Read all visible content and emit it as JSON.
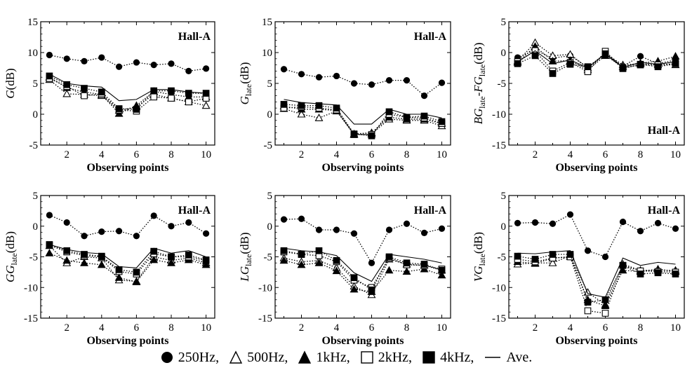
{
  "chart_data": [
    {
      "type": "line",
      "ylabel_main": "G",
      "ylabel_sub": "",
      "ylabel_unit": "(dB)",
      "xlabel": "Observing points",
      "annotation": "Hall-A",
      "annotation_pos": "top",
      "ylim": [
        -5,
        15
      ],
      "yticks": [
        -5,
        0,
        5,
        10,
        15
      ],
      "xlim": [
        0.5,
        10.5
      ],
      "xticks": [
        2,
        4,
        6,
        8,
        10
      ],
      "x": [
        1,
        2,
        3,
        4,
        5,
        6,
        7,
        8,
        9,
        10
      ],
      "series": [
        {
          "name": "250Hz",
          "marker": "circle",
          "values": [
            9.6,
            9.0,
            8.6,
            9.2,
            7.7,
            8.4,
            8.0,
            8.2,
            7.0,
            7.4
          ]
        },
        {
          "name": "500Hz",
          "marker": "triangle-open",
          "values": [
            5.6,
            3.3,
            3.2,
            3.0,
            0.6,
            1.2,
            3.2,
            2.6,
            2.0,
            1.4
          ]
        },
        {
          "name": "1kHz",
          "marker": "triangle",
          "values": [
            6.0,
            4.3,
            3.6,
            3.2,
            0.1,
            1.4,
            3.7,
            3.2,
            2.8,
            2.8
          ]
        },
        {
          "name": "2kHz",
          "marker": "square-open",
          "values": [
            5.8,
            4.5,
            3.0,
            3.3,
            0.7,
            0.5,
            2.8,
            2.6,
            2.0,
            2.6
          ]
        },
        {
          "name": "4kHz",
          "marker": "square",
          "values": [
            6.2,
            4.8,
            4.2,
            3.6,
            0.9,
            0.8,
            3.8,
            3.8,
            3.4,
            3.4
          ]
        },
        {
          "name": "Ave.",
          "marker": "none",
          "values": [
            6.5,
            5.0,
            4.6,
            4.4,
            2.2,
            2.4,
            4.0,
            4.0,
            3.6,
            3.4
          ]
        }
      ]
    },
    {
      "type": "line",
      "ylabel_main": "G",
      "ylabel_sub": "late",
      "ylabel_unit": "(dB)",
      "xlabel": "Observing points",
      "annotation": "Hall-A",
      "annotation_pos": "top",
      "ylim": [
        -5,
        15
      ],
      "yticks": [
        -5,
        0,
        5,
        10,
        15
      ],
      "xlim": [
        0.5,
        10.5
      ],
      "xticks": [
        2,
        4,
        6,
        8,
        10
      ],
      "x": [
        1,
        2,
        3,
        4,
        5,
        6,
        7,
        8,
        9,
        10
      ],
      "series": [
        {
          "name": "250Hz",
          "marker": "circle",
          "values": [
            7.3,
            6.5,
            6.0,
            6.2,
            5.0,
            4.8,
            5.5,
            5.5,
            3.0,
            5.1
          ]
        },
        {
          "name": "500Hz",
          "marker": "triangle-open",
          "values": [
            0.9,
            0.0,
            -0.6,
            0.5,
            -3.3,
            -3.2,
            -0.8,
            -1.0,
            -1.0,
            -1.9
          ]
        },
        {
          "name": "1kHz",
          "marker": "triangle",
          "values": [
            1.3,
            0.8,
            0.8,
            0.6,
            -3.2,
            -3.0,
            -0.5,
            -0.8,
            -0.8,
            -1.5
          ]
        },
        {
          "name": "2kHz",
          "marker": "square-open",
          "values": [
            1.0,
            1.2,
            1.0,
            0.7,
            -3.3,
            -3.3,
            0.0,
            -0.5,
            -0.6,
            -1.5
          ]
        },
        {
          "name": "4kHz",
          "marker": "square",
          "values": [
            1.6,
            1.4,
            1.4,
            1.0,
            -3.2,
            -3.5,
            0.4,
            -0.5,
            -0.3,
            -1.2
          ]
        },
        {
          "name": "Ave.",
          "marker": "none",
          "values": [
            2.4,
            1.9,
            1.7,
            1.5,
            -1.6,
            -1.6,
            0.8,
            0.0,
            0.0,
            -0.6
          ]
        }
      ]
    },
    {
      "type": "line",
      "ylabel_main": "BG",
      "ylabel_sub": "late",
      "ylabel_mid": "-FG",
      "ylabel_sub2": "late",
      "ylabel_unit": "(dB)",
      "xlabel": "Observing points",
      "annotation": "Hall-A",
      "annotation_pos": "bottom",
      "ylim": [
        -15,
        5
      ],
      "yticks": [
        -15,
        -10,
        -5,
        0,
        5
      ],
      "xlim": [
        0.5,
        10.5
      ],
      "xticks": [
        2,
        4,
        6,
        8,
        10
      ],
      "x": [
        1,
        2,
        3,
        4,
        5,
        6,
        7,
        8,
        9,
        10
      ],
      "series": [
        {
          "name": "250Hz",
          "marker": "circle",
          "values": [
            -0.8,
            0.4,
            -0.9,
            -0.5,
            -2.4,
            -0.3,
            -2.2,
            -0.6,
            -1.8,
            -1.2
          ]
        },
        {
          "name": "500Hz",
          "marker": "triangle-open",
          "values": [
            -1.4,
            1.6,
            -0.5,
            -0.3,
            -2.5,
            -0.2,
            -2.0,
            -1.8,
            -2.0,
            -2.0
          ]
        },
        {
          "name": "1kHz",
          "marker": "triangle",
          "values": [
            -1.6,
            1.0,
            -1.4,
            -1.3,
            -2.8,
            -0.5,
            -2.3,
            -1.7,
            -1.4,
            -0.6
          ]
        },
        {
          "name": "2kHz",
          "marker": "square-open",
          "values": [
            -1.5,
            0.3,
            -3.0,
            -1.6,
            -3.1,
            0.2,
            -2.5,
            -2.0,
            -2.0,
            -1.8
          ]
        },
        {
          "name": "4kHz",
          "marker": "square",
          "values": [
            -1.8,
            -0.5,
            -3.4,
            -1.9,
            -2.3,
            -0.2,
            -2.6,
            -1.9,
            -2.3,
            -1.8
          ]
        },
        {
          "name": "Ave.",
          "marker": "none",
          "values": [
            -1.5,
            0.3,
            -1.8,
            -1.2,
            -2.5,
            -0.2,
            -2.4,
            -1.6,
            -1.9,
            -1.5
          ]
        }
      ]
    },
    {
      "type": "line",
      "ylabel_main": "GG",
      "ylabel_sub": "late",
      "ylabel_unit": "(dB)",
      "xlabel": "Observing points",
      "annotation": "Hall-A",
      "annotation_pos": "top",
      "ylim": [
        -15,
        5
      ],
      "yticks": [
        -15,
        -10,
        -5,
        0,
        5
      ],
      "xlim": [
        0.5,
        10.5
      ],
      "xticks": [
        2,
        4,
        6,
        8,
        10
      ],
      "x": [
        1,
        2,
        3,
        4,
        5,
        6,
        7,
        8,
        9,
        10
      ],
      "series": [
        {
          "name": "250Hz",
          "marker": "circle",
          "values": [
            1.8,
            0.6,
            -1.6,
            -0.9,
            -0.8,
            -1.6,
            1.7,
            0.0,
            0.6,
            -1.2
          ]
        },
        {
          "name": "500Hz",
          "marker": "triangle-open",
          "values": [
            -3.2,
            -6.0,
            -5.0,
            -5.2,
            -8.8,
            -9.0,
            -5.0,
            -5.6,
            -5.2,
            -6.0
          ]
        },
        {
          "name": "1kHz",
          "marker": "triangle",
          "values": [
            -4.4,
            -5.6,
            -6.0,
            -6.3,
            -8.4,
            -9.1,
            -5.5,
            -6.0,
            -5.5,
            -6.3
          ]
        },
        {
          "name": "2kHz",
          "marker": "square-open",
          "values": [
            -3.1,
            -4.2,
            -4.8,
            -5.0,
            -7.4,
            -7.8,
            -4.5,
            -5.0,
            -5.0,
            -5.6
          ]
        },
        {
          "name": "4kHz",
          "marker": "square",
          "values": [
            -3.0,
            -4.0,
            -4.6,
            -4.9,
            -7.1,
            -7.5,
            -4.1,
            -5.0,
            -4.7,
            -5.5
          ]
        },
        {
          "name": "Ave.",
          "marker": "none",
          "values": [
            -3.0,
            -3.8,
            -4.3,
            -4.5,
            -6.6,
            -6.8,
            -3.6,
            -4.4,
            -4.0,
            -5.0
          ]
        }
      ]
    },
    {
      "type": "line",
      "ylabel_main": "LG",
      "ylabel_sub": "late",
      "ylabel_unit": "(dB)",
      "xlabel": "Observing points",
      "annotation": "Hall-A",
      "annotation_pos": "top",
      "ylim": [
        -15,
        5
      ],
      "yticks": [
        -15,
        -10,
        -5,
        0,
        5
      ],
      "xlim": [
        0.5,
        10.5
      ],
      "xticks": [
        2,
        4,
        6,
        8,
        10
      ],
      "x": [
        1,
        2,
        3,
        4,
        5,
        6,
        7,
        8,
        9,
        10
      ],
      "series": [
        {
          "name": "250Hz",
          "marker": "circle",
          "values": [
            1.1,
            1.2,
            -0.6,
            -0.6,
            -1.2,
            -6.0,
            -0.6,
            0.4,
            -1.1,
            -0.4
          ]
        },
        {
          "name": "500Hz",
          "marker": "triangle-open",
          "values": [
            -5.2,
            -5.8,
            -5.6,
            -6.8,
            -9.8,
            -11.2,
            -5.4,
            -6.2,
            -6.4,
            -7.2
          ]
        },
        {
          "name": "1kHz",
          "marker": "triangle",
          "values": [
            -5.6,
            -6.3,
            -6.0,
            -7.3,
            -10.3,
            -10.7,
            -7.2,
            -7.4,
            -7.0,
            -8.0
          ]
        },
        {
          "name": "2kHz",
          "marker": "square-open",
          "values": [
            -4.2,
            -4.6,
            -4.8,
            -5.8,
            -8.8,
            -10.0,
            -5.2,
            -6.3,
            -6.4,
            -7.0
          ]
        },
        {
          "name": "4kHz",
          "marker": "square",
          "values": [
            -4.0,
            -4.6,
            -4.0,
            -5.6,
            -8.4,
            -10.4,
            -5.0,
            -6.0,
            -6.2,
            -7.2
          ]
        },
        {
          "name": "Ave.",
          "marker": "none",
          "values": [
            -3.6,
            -4.0,
            -4.2,
            -4.8,
            -7.6,
            -9.0,
            -4.6,
            -5.0,
            -5.4,
            -6.0
          ]
        }
      ]
    },
    {
      "type": "line",
      "ylabel_main": "VG",
      "ylabel_sub": "late",
      "ylabel_unit": "(dB)",
      "xlabel": "Observing points",
      "annotation": "Hall-A",
      "annotation_pos": "top",
      "ylim": [
        -15,
        5
      ],
      "yticks": [
        -15,
        -10,
        -5,
        0,
        5
      ],
      "xlim": [
        0.5,
        10.5
      ],
      "xticks": [
        2,
        4,
        6,
        8,
        10
      ],
      "x": [
        1,
        2,
        3,
        4,
        5,
        6,
        7,
        8,
        9,
        10
      ],
      "series": [
        {
          "name": "250Hz",
          "marker": "circle",
          "values": [
            0.5,
            0.6,
            0.4,
            1.9,
            -4.0,
            -5.0,
            0.7,
            -0.8,
            0.5,
            -0.4
          ]
        },
        {
          "name": "500Hz",
          "marker": "triangle-open",
          "values": [
            -6.2,
            -6.0,
            -6.0,
            -4.8,
            -10.8,
            -12.8,
            -6.2,
            -7.2,
            -7.2,
            -7.2
          ]
        },
        {
          "name": "1kHz",
          "marker": "triangle",
          "values": [
            -5.8,
            -6.1,
            -5.2,
            -5.0,
            -12.0,
            -13.0,
            -7.2,
            -7.4,
            -7.0,
            -7.4
          ]
        },
        {
          "name": "2kHz",
          "marker": "square-open",
          "values": [
            -5.4,
            -5.8,
            -5.2,
            -5.0,
            -13.8,
            -14.2,
            -6.4,
            -7.3,
            -7.4,
            -7.5
          ]
        },
        {
          "name": "4kHz",
          "marker": "square",
          "values": [
            -4.9,
            -5.4,
            -4.6,
            -4.6,
            -12.4,
            -12.0,
            -6.4,
            -7.8,
            -7.6,
            -7.8
          ]
        },
        {
          "name": "Ave.",
          "marker": "none",
          "values": [
            -4.4,
            -4.5,
            -4.2,
            -4.0,
            -11.0,
            -11.6,
            -5.2,
            -6.4,
            -5.9,
            -6.2
          ]
        }
      ]
    }
  ],
  "legend": [
    {
      "marker": "circle",
      "label": "250Hz,"
    },
    {
      "marker": "triangle-open",
      "label": "500Hz,"
    },
    {
      "marker": "triangle",
      "label": "1kHz,"
    },
    {
      "marker": "square-open",
      "label": "2kHz,"
    },
    {
      "marker": "square",
      "label": "4kHz,"
    },
    {
      "marker": "line",
      "label": "Ave."
    }
  ]
}
